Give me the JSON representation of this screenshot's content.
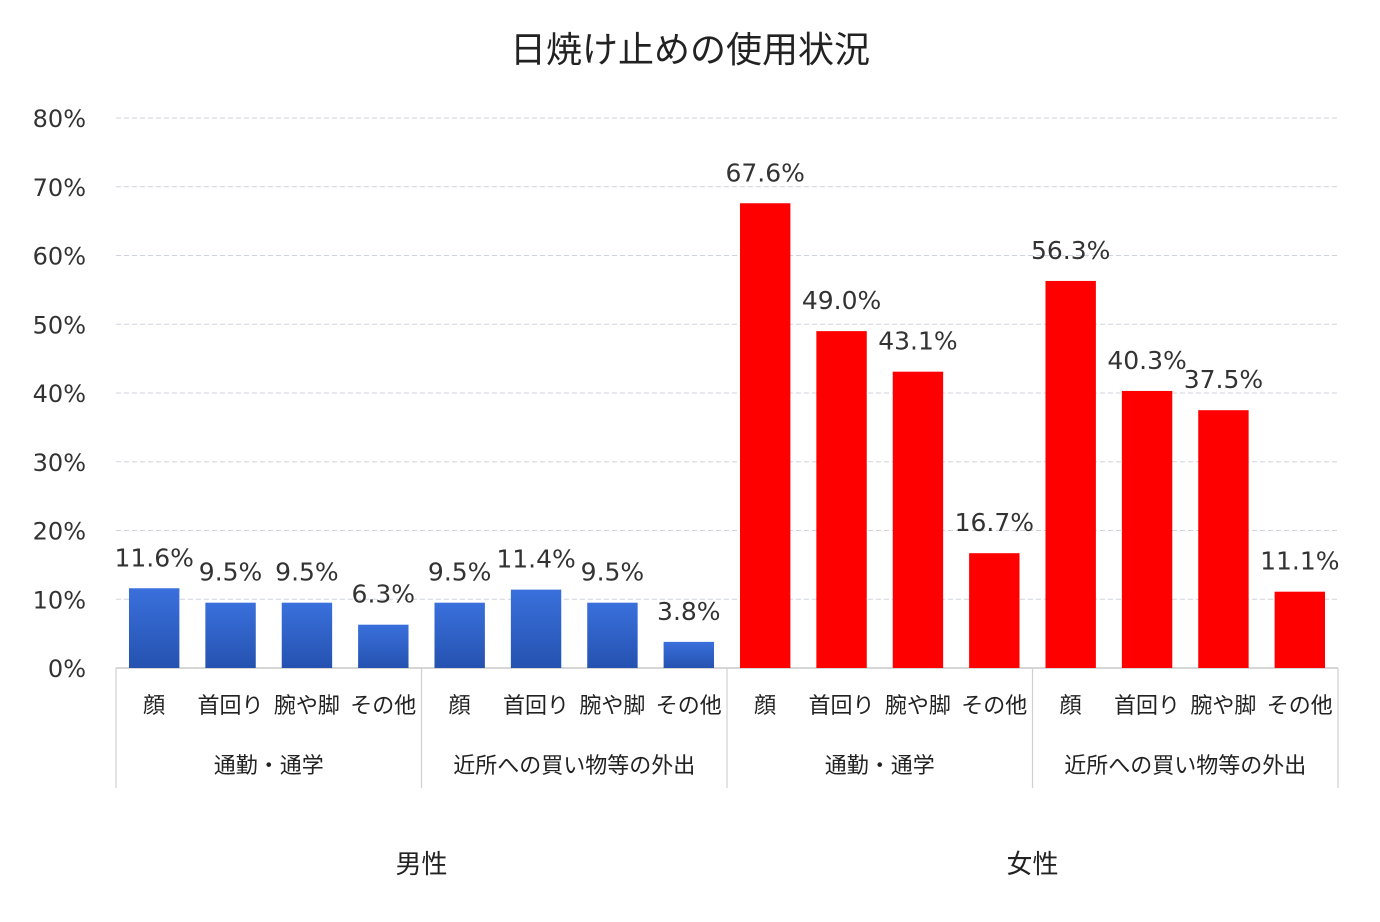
{
  "chart_data": {
    "type": "bar",
    "title": "日焼け止めの使用状況",
    "y_ticks": [
      "0%",
      "10%",
      "20%",
      "30%",
      "40%",
      "50%",
      "60%",
      "70%",
      "80%"
    ],
    "ylim": [
      0,
      80
    ],
    "grid": true,
    "legend": "none",
    "genders": [
      {
        "label": "男性",
        "color": "#2f65d0",
        "groups": [
          {
            "label": "通勤・通学",
            "categories": [
              "顔",
              "首回り",
              "腕や脚",
              "その他"
            ],
            "values": [
              11.6,
              9.5,
              9.5,
              6.3
            ],
            "labels": [
              "11.6%",
              "9.5%",
              "9.5%",
              "6.3%"
            ]
          },
          {
            "label": "近所への買い物等の外出",
            "categories": [
              "顔",
              "首回り",
              "腕や脚",
              "その他"
            ],
            "values": [
              9.5,
              11.4,
              9.5,
              3.8
            ],
            "labels": [
              "9.5%",
              "11.4%",
              "9.5%",
              "3.8%"
            ]
          }
        ]
      },
      {
        "label": "女性",
        "color": "#ff0000",
        "groups": [
          {
            "label": "通勤・通学",
            "categories": [
              "顔",
              "首回り",
              "腕や脚",
              "その他"
            ],
            "values": [
              67.6,
              49.0,
              43.1,
              16.7
            ],
            "labels": [
              "67.6%",
              "49.0%",
              "43.1%",
              "16.7%"
            ]
          },
          {
            "label": "近所への買い物等の外出",
            "categories": [
              "顔",
              "首回り",
              "腕や脚",
              "その他"
            ],
            "values": [
              56.3,
              40.3,
              37.5,
              11.1
            ],
            "labels": [
              "56.3%",
              "40.3%",
              "37.5%",
              "11.1%"
            ]
          }
        ]
      }
    ]
  }
}
